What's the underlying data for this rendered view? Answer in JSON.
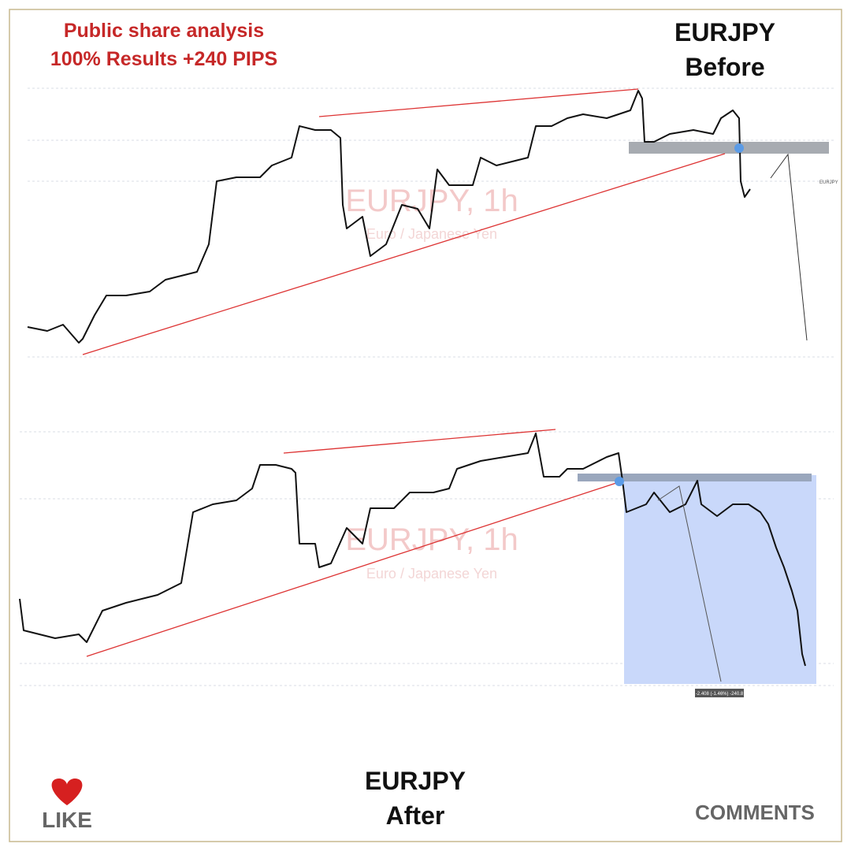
{
  "header": {
    "title_line1": "Public share analysis",
    "title_line2": "100% Results +240 PIPS"
  },
  "before": {
    "pair": "EURJPY",
    "label": "Before",
    "watermark": "EURJPY, 1h",
    "watermark_sub": "Euro / Japanese Yen",
    "axis_tag": "EURJPY"
  },
  "after": {
    "pair": "EURJPY",
    "label": "After",
    "watermark": "EURJPY, 1h",
    "watermark_sub": "Euro / Japanese Yen",
    "measure": "-2.408 (-1.46%) -240.8"
  },
  "footer": {
    "like": "LIKE",
    "comments": "COMMENTS"
  }
}
